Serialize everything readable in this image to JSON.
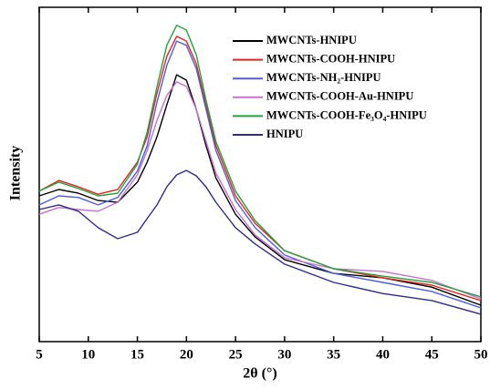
{
  "chart_data": {
    "type": "line",
    "xlabel": "2θ (°)",
    "ylabel": "Intensity",
    "x": [
      5,
      7,
      9,
      11,
      13,
      15,
      16,
      17,
      18,
      19,
      20,
      21,
      22,
      23,
      25,
      27,
      30,
      35,
      40,
      45,
      50
    ],
    "xlim": [
      5,
      50
    ],
    "xticks": [
      5,
      10,
      15,
      20,
      25,
      30,
      35,
      40,
      45,
      50
    ],
    "ylim": [
      0,
      100
    ],
    "series": [
      {
        "name": "MWCNTs-HNIPU",
        "color": "#000000",
        "values": [
          43.6,
          45.5,
          44.4,
          42.2,
          41.7,
          47.7,
          53.7,
          61.3,
          70.8,
          79.8,
          78.2,
          69.5,
          58.6,
          49.0,
          38.1,
          31.3,
          24.5,
          20.4,
          19.1,
          16.3,
          10.9
        ]
      },
      {
        "name": "MWCNTs-COOH-HNIPU",
        "color": "#e8211f",
        "values": [
          45.0,
          48.2,
          46.3,
          44.1,
          45.5,
          53.7,
          61.3,
          74.4,
          85.3,
          91.3,
          89.9,
          83.1,
          70.8,
          58.6,
          43.6,
          35.4,
          27.2,
          21.8,
          19.1,
          16.9,
          12.3
        ]
      },
      {
        "name": "MWCNTs-NH₂-HNIPU",
        "color": "#4b5ee0",
        "values": [
          40.9,
          43.6,
          43.1,
          40.9,
          43.1,
          51.0,
          58.6,
          71.7,
          82.6,
          89.9,
          88.6,
          81.7,
          69.5,
          57.2,
          42.2,
          34.1,
          25.9,
          20.4,
          17.7,
          15.0,
          10.1
        ]
      },
      {
        "name": "MWCNTs-COOH-Au-HNIPU",
        "color": "#c86fd0",
        "values": [
          38.1,
          40.1,
          39.5,
          39.0,
          41.7,
          49.9,
          57.2,
          66.2,
          73.6,
          77.7,
          76.3,
          69.5,
          59.9,
          50.4,
          39.5,
          31.9,
          25.1,
          21.8,
          21.0,
          18.3,
          12.8
        ]
      },
      {
        "name": "MWCNTs-COOH-Fe₃O₄-HNIPU",
        "color": "#1fa53c",
        "values": [
          45.0,
          47.7,
          45.8,
          43.6,
          44.4,
          53.1,
          62.7,
          76.3,
          88.6,
          94.6,
          93.2,
          85.8,
          72.2,
          59.9,
          45.0,
          36.2,
          27.2,
          21.8,
          19.6,
          17.7,
          13.4
        ]
      },
      {
        "name": "HNIPU",
        "color": "#2b2b8f",
        "values": [
          39.5,
          40.9,
          39.0,
          34.1,
          30.8,
          32.7,
          36.8,
          40.9,
          46.3,
          49.9,
          51.2,
          49.6,
          46.3,
          41.7,
          34.1,
          29.2,
          23.2,
          17.7,
          14.4,
          12.3,
          8.2
        ]
      }
    ]
  }
}
